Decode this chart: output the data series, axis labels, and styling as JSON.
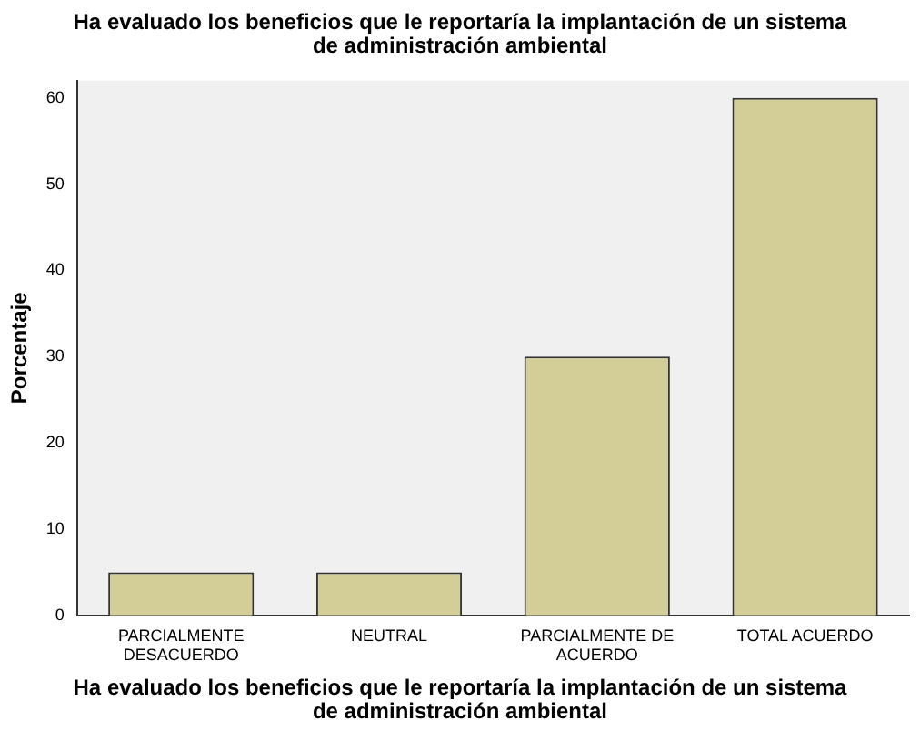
{
  "chart_data": {
    "type": "bar",
    "title": "Ha evaluado los beneficios que le reportaría la implantación de un sistema de administración ambiental",
    "xlabel": "Ha evaluado los beneficios que le reportaría la implantación de un sistema de administración ambiental",
    "ylabel": "Porcentaje",
    "categories": [
      "PARCIALMENTE DESACUERDO",
      "NEUTRAL",
      "PARCIALMENTE DE ACUERDO",
      "TOTAL ACUERDO"
    ],
    "values": [
      5,
      5,
      30,
      60
    ],
    "color": "#d3ce97",
    "ylim": [
      0,
      62
    ],
    "yticks": [
      0,
      10,
      20,
      30,
      40,
      50,
      60
    ],
    "grid": false,
    "legend": false
  }
}
